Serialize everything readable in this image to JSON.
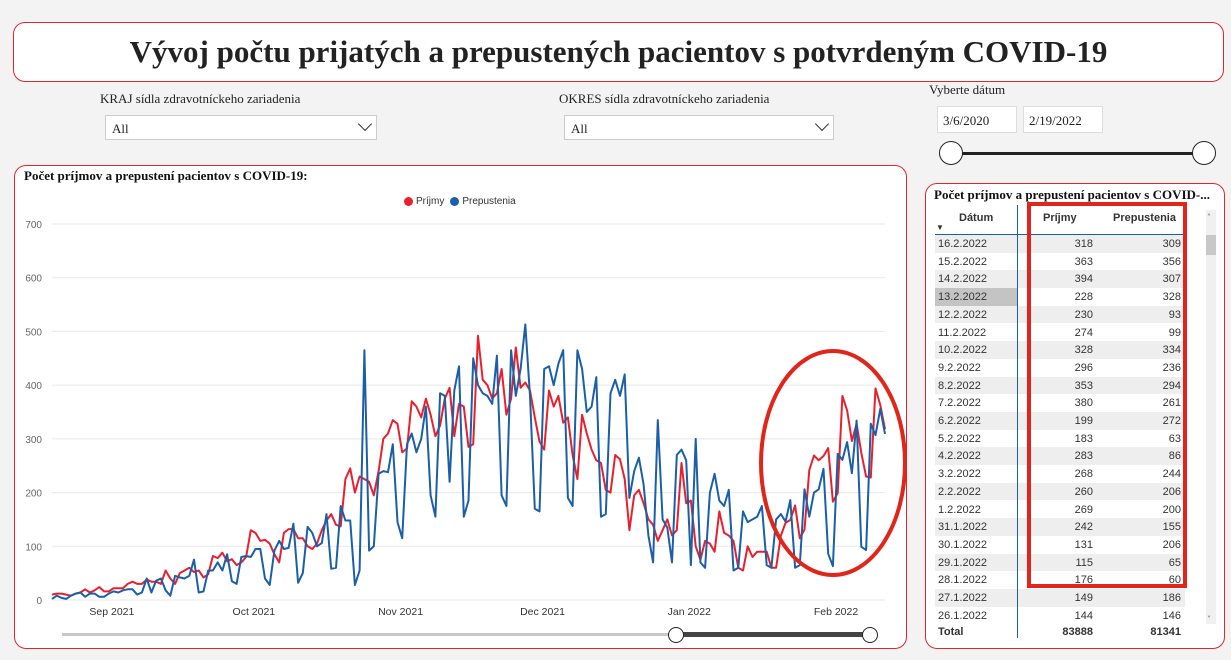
{
  "title": "Vývoj počtu prijatých a prepustených pacientov s potvrdeným COVID-19",
  "filters": {
    "kraj": {
      "label": "KRAJ sídla zdravotníckeho zariadenia",
      "value": "All"
    },
    "okres": {
      "label": "OKRES sídla zdravotníckeho zariadenia",
      "value": "All"
    },
    "date": {
      "label": "Vyberte dátum",
      "from": "3/6/2020",
      "to": "2/19/2022",
      "range": [
        0,
        1
      ]
    }
  },
  "chart_panel": {
    "title": "Počet príjmov a prepustení pacientov s COVID-19:"
  },
  "chart_data": {
    "type": "line",
    "title": "",
    "legend": {
      "position": "top-center",
      "entries": [
        "Príjmy",
        "Prepustenia"
      ]
    },
    "colors": {
      "Príjmy": "#e8202e",
      "Prepustenia": "#1b5fa8"
    },
    "ylim": [
      0,
      700
    ],
    "yticks": [
      "0",
      "100",
      "200",
      "300",
      "400",
      "500",
      "600",
      "700"
    ],
    "xticks": [
      {
        "date": "2021-09-01",
        "label": "Sep 2021"
      },
      {
        "date": "2021-10-01",
        "label": "Oct 2021"
      },
      {
        "date": "2021-11-01",
        "label": "Nov 2021"
      },
      {
        "date": "2021-12-01",
        "label": "Dec 2021"
      },
      {
        "date": "2022-01-01",
        "label": "Jan 2022"
      },
      {
        "date": "2022-02-01",
        "label": "Feb 2022"
      }
    ],
    "grid": true,
    "xlim": [
      "2021-08-24",
      "2022-02-16"
    ],
    "points": [
      [
        "2021-08-24",
        10,
        2
      ],
      [
        "2021-08-25",
        12,
        8
      ],
      [
        "2021-08-26",
        12,
        4
      ],
      [
        "2021-08-27",
        10,
        2
      ],
      [
        "2021-08-28",
        8,
        8
      ],
      [
        "2021-08-29",
        12,
        12
      ],
      [
        "2021-08-30",
        14,
        14
      ],
      [
        "2021-08-31",
        20,
        6
      ],
      [
        "2021-09-01",
        14,
        12
      ],
      [
        "2021-09-02",
        18,
        12
      ],
      [
        "2021-09-03",
        24,
        6
      ],
      [
        "2021-09-04",
        16,
        6
      ],
      [
        "2021-09-05",
        16,
        12
      ],
      [
        "2021-09-06",
        22,
        16
      ],
      [
        "2021-09-07",
        22,
        14
      ],
      [
        "2021-09-08",
        22,
        18
      ],
      [
        "2021-09-09",
        30,
        20
      ],
      [
        "2021-09-10",
        34,
        20
      ],
      [
        "2021-09-11",
        30,
        10
      ],
      [
        "2021-09-12",
        30,
        14
      ],
      [
        "2021-09-13",
        38,
        40
      ],
      [
        "2021-09-14",
        34,
        14
      ],
      [
        "2021-09-15",
        34,
        36
      ],
      [
        "2021-09-16",
        30,
        40
      ],
      [
        "2021-09-17",
        55,
        18
      ],
      [
        "2021-09-18",
        40,
        8
      ],
      [
        "2021-09-19",
        30,
        45
      ],
      [
        "2021-09-20",
        50,
        42
      ],
      [
        "2021-09-21",
        55,
        40
      ],
      [
        "2021-09-22",
        60,
        45
      ],
      [
        "2021-09-23",
        52,
        75
      ],
      [
        "2021-09-24",
        55,
        14
      ],
      [
        "2021-09-25",
        42,
        16
      ],
      [
        "2021-09-26",
        48,
        55
      ],
      [
        "2021-09-27",
        82,
        55
      ],
      [
        "2021-09-28",
        78,
        70
      ],
      [
        "2021-09-29",
        88,
        55
      ],
      [
        "2021-09-30",
        72,
        85
      ],
      [
        "2021-10-01",
        76,
        35
      ],
      [
        "2021-10-02",
        65,
        30
      ],
      [
        "2021-10-03",
        70,
        80
      ],
      [
        "2021-10-04",
        80,
        82
      ],
      [
        "2021-10-05",
        130,
        80
      ],
      [
        "2021-10-06",
        125,
        95
      ],
      [
        "2021-10-07",
        110,
        95
      ],
      [
        "2021-10-08",
        112,
        40
      ],
      [
        "2021-10-09",
        105,
        28
      ],
      [
        "2021-10-10",
        85,
        92
      ],
      [
        "2021-10-11",
        70,
        110
      ],
      [
        "2021-10-12",
        125,
        95
      ],
      [
        "2021-10-13",
        132,
        97
      ],
      [
        "2021-10-14",
        132,
        142
      ],
      [
        "2021-10-15",
        115,
        32
      ],
      [
        "2021-10-16",
        115,
        50
      ],
      [
        "2021-10-17",
        100,
        136
      ],
      [
        "2021-10-18",
        95,
        125
      ],
      [
        "2021-10-19",
        105,
        100
      ],
      [
        "2021-10-20",
        130,
        106
      ],
      [
        "2021-10-21",
        148,
        160
      ],
      [
        "2021-10-22",
        160,
        58
      ],
      [
        "2021-10-23",
        140,
        60
      ],
      [
        "2021-10-24",
        137,
        175
      ],
      [
        "2021-10-25",
        225,
        148
      ],
      [
        "2021-10-26",
        245,
        148
      ],
      [
        "2021-10-27",
        200,
        28
      ],
      [
        "2021-10-28",
        230,
        55
      ],
      [
        "2021-10-29",
        225,
        465
      ],
      [
        "2021-10-30",
        220,
        92
      ],
      [
        "2021-10-31",
        195,
        100
      ],
      [
        "2021-11-01",
        240,
        235
      ],
      [
        "2021-11-02",
        300,
        240
      ],
      [
        "2021-11-03",
        310,
        238
      ],
      [
        "2021-11-04",
        335,
        290
      ],
      [
        "2021-11-05",
        328,
        145
      ],
      [
        "2021-11-06",
        275,
        115
      ],
      [
        "2021-11-07",
        282,
        290
      ],
      [
        "2021-11-08",
        370,
        310
      ],
      [
        "2021-11-09",
        360,
        275
      ],
      [
        "2021-11-10",
        340,
        300
      ],
      [
        "2021-11-11",
        375,
        360
      ],
      [
        "2021-11-12",
        345,
        195
      ],
      [
        "2021-11-13",
        305,
        155
      ],
      [
        "2021-11-14",
        325,
        385
      ],
      [
        "2021-11-15",
        375,
        380
      ],
      [
        "2021-11-16",
        395,
        220
      ],
      [
        "2021-11-17",
        305,
        390
      ],
      [
        "2021-11-18",
        365,
        435
      ],
      [
        "2021-11-19",
        360,
        155
      ],
      [
        "2021-11-20",
        285,
        185
      ],
      [
        "2021-11-21",
        290,
        450
      ],
      [
        "2021-11-22",
        492,
        400
      ],
      [
        "2021-11-23",
        410,
        385
      ],
      [
        "2021-11-24",
        400,
        380
      ],
      [
        "2021-11-25",
        375,
        365
      ],
      [
        "2021-11-26",
        385,
        455
      ],
      [
        "2021-11-27",
        430,
        195
      ],
      [
        "2021-11-28",
        345,
        175
      ],
      [
        "2021-11-29",
        375,
        465
      ],
      [
        "2021-11-30",
        470,
        380
      ],
      [
        "2021-12-01",
        395,
        430
      ],
      [
        "2021-12-02",
        405,
        513
      ],
      [
        "2021-12-03",
        390,
        380
      ],
      [
        "2021-12-04",
        340,
        170
      ],
      [
        "2021-12-05",
        295,
        165
      ],
      [
        "2021-12-06",
        280,
        430
      ],
      [
        "2021-12-07",
        390,
        435
      ],
      [
        "2021-12-08",
        360,
        400
      ],
      [
        "2021-12-09",
        380,
        440
      ],
      [
        "2021-12-10",
        330,
        465
      ],
      [
        "2021-12-11",
        340,
        190
      ],
      [
        "2021-12-12",
        270,
        175
      ],
      [
        "2021-12-13",
        225,
        465
      ],
      [
        "2021-12-14",
        345,
        430
      ],
      [
        "2021-12-15",
        310,
        350
      ],
      [
        "2021-12-16",
        280,
        360
      ],
      [
        "2021-12-17",
        260,
        415
      ],
      [
        "2021-12-18",
        255,
        155
      ],
      [
        "2021-12-19",
        205,
        160
      ],
      [
        "2021-12-20",
        200,
        385
      ],
      [
        "2021-12-21",
        270,
        410
      ],
      [
        "2021-12-22",
        262,
        380
      ],
      [
        "2021-12-23",
        225,
        420
      ],
      [
        "2021-12-24",
        130,
        190
      ],
      [
        "2021-12-25",
        195,
        240
      ],
      [
        "2021-12-26",
        205,
        265
      ],
      [
        "2021-12-27",
        180,
        215
      ],
      [
        "2021-12-28",
        150,
        120
      ],
      [
        "2021-12-29",
        140,
        70
      ],
      [
        "2021-12-30",
        110,
        335
      ],
      [
        "2021-12-31",
        130,
        150
      ],
      [
        "2022-01-01",
        150,
        135
      ],
      [
        "2022-01-02",
        120,
        70
      ],
      [
        "2022-01-03",
        130,
        270
      ],
      [
        "2022-01-04",
        255,
        280
      ],
      [
        "2022-01-05",
        180,
        260
      ],
      [
        "2022-01-06",
        185,
        65
      ],
      [
        "2022-01-07",
        100,
        300
      ],
      [
        "2022-01-08",
        75,
        70
      ],
      [
        "2022-01-09",
        110,
        60
      ],
      [
        "2022-01-10",
        105,
        200
      ],
      [
        "2022-01-11",
        90,
        235
      ],
      [
        "2022-01-12",
        165,
        185
      ],
      [
        "2022-01-13",
        125,
        175
      ],
      [
        "2022-01-14",
        120,
        205
      ],
      [
        "2022-01-15",
        110,
        55
      ],
      [
        "2022-01-16",
        60,
        60
      ],
      [
        "2022-01-17",
        55,
        165
      ],
      [
        "2022-01-18",
        100,
        145
      ],
      [
        "2022-01-19",
        80,
        150
      ],
      [
        "2022-01-20",
        90,
        155
      ],
      [
        "2022-01-21",
        90,
        175
      ],
      [
        "2022-01-22",
        90,
        65
      ],
      [
        "2022-01-23",
        60,
        60
      ],
      [
        "2022-01-24",
        60,
        150
      ],
      [
        "2022-01-25",
        120,
        160
      ],
      [
        "2022-01-26",
        144,
        146
      ],
      [
        "2022-01-27",
        149,
        186
      ],
      [
        "2022-01-28",
        176,
        60
      ],
      [
        "2022-01-29",
        115,
        65
      ],
      [
        "2022-01-30",
        131,
        206
      ],
      [
        "2022-01-31",
        242,
        155
      ],
      [
        "2022-02-01",
        269,
        200
      ],
      [
        "2022-02-02",
        260,
        206
      ],
      [
        "2022-02-03",
        268,
        244
      ],
      [
        "2022-02-04",
        283,
        86
      ],
      [
        "2022-02-05",
        183,
        63
      ],
      [
        "2022-02-06",
        199,
        272
      ],
      [
        "2022-02-07",
        380,
        261
      ],
      [
        "2022-02-08",
        353,
        294
      ],
      [
        "2022-02-09",
        296,
        236
      ],
      [
        "2022-02-10",
        328,
        334
      ],
      [
        "2022-02-11",
        274,
        99
      ],
      [
        "2022-02-12",
        230,
        93
      ],
      [
        "2022-02-13",
        228,
        328
      ],
      [
        "2022-02-14",
        394,
        307
      ],
      [
        "2022-02-15",
        363,
        356
      ],
      [
        "2022-02-16",
        318,
        309
      ]
    ]
  },
  "table": {
    "title": "Počet príjmov a prepustení pacientov s COVID-...",
    "columns": [
      "Dátum",
      "Príjmy",
      "Prepustenia"
    ],
    "rows": [
      [
        "16.2.2022",
        "318",
        "309"
      ],
      [
        "15.2.2022",
        "363",
        "356"
      ],
      [
        "14.2.2022",
        "394",
        "307"
      ],
      [
        "13.2.2022",
        "228",
        "328"
      ],
      [
        "12.2.2022",
        "230",
        "93"
      ],
      [
        "11.2.2022",
        "274",
        "99"
      ],
      [
        "10.2.2022",
        "328",
        "334"
      ],
      [
        "9.2.2022",
        "296",
        "236"
      ],
      [
        "8.2.2022",
        "353",
        "294"
      ],
      [
        "7.2.2022",
        "380",
        "261"
      ],
      [
        "6.2.2022",
        "199",
        "272"
      ],
      [
        "5.2.2022",
        "183",
        "63"
      ],
      [
        "4.2.2022",
        "283",
        "86"
      ],
      [
        "3.2.2022",
        "268",
        "244"
      ],
      [
        "2.2.2022",
        "260",
        "206"
      ],
      [
        "1.2.2022",
        "269",
        "200"
      ],
      [
        "31.1.2022",
        "242",
        "155"
      ],
      [
        "30.1.2022",
        "131",
        "206"
      ],
      [
        "29.1.2022",
        "115",
        "65"
      ],
      [
        "28.1.2022",
        "176",
        "60"
      ],
      [
        "27.1.2022",
        "149",
        "186"
      ],
      [
        "26.1.2022",
        "144",
        "146"
      ]
    ],
    "total": [
      "Total",
      "83888",
      "81341"
    ]
  },
  "annotation_color": "#e0261b"
}
